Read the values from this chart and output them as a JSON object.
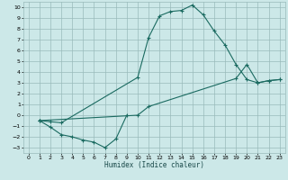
{
  "xlabel": "Humidex (Indice chaleur)",
  "bg_color": "#cce8e8",
  "line_color": "#1a6a60",
  "grid_color": "#99bbbb",
  "xlim": [
    -0.5,
    23.5
  ],
  "ylim": [
    -3.5,
    10.5
  ],
  "xticks": [
    0,
    1,
    2,
    3,
    4,
    5,
    6,
    7,
    8,
    9,
    10,
    11,
    12,
    13,
    14,
    15,
    16,
    17,
    18,
    19,
    20,
    21,
    22,
    23
  ],
  "yticks": [
    -3,
    -2,
    -1,
    0,
    1,
    2,
    3,
    4,
    5,
    6,
    7,
    8,
    9,
    10
  ],
  "line1_x": [
    1,
    2,
    3,
    4,
    5,
    6,
    7,
    8,
    9
  ],
  "line1_y": [
    -0.5,
    -1.1,
    -1.8,
    -2.0,
    -2.3,
    -2.5,
    -3.0,
    -2.2,
    0.0
  ],
  "line2_x": [
    1,
    2,
    3,
    10,
    11,
    12,
    13,
    14,
    15,
    16,
    17,
    18,
    19,
    20,
    21,
    22,
    23
  ],
  "line2_y": [
    -0.5,
    -0.6,
    -0.7,
    3.5,
    7.2,
    9.2,
    9.6,
    9.7,
    10.2,
    9.3,
    7.8,
    6.5,
    4.7,
    3.3,
    3.0,
    3.2,
    3.3
  ],
  "line3_x": [
    1,
    10,
    11,
    19,
    20,
    21,
    22,
    23
  ],
  "line3_y": [
    -0.5,
    0.0,
    0.8,
    3.4,
    4.7,
    3.0,
    3.2,
    3.3
  ]
}
